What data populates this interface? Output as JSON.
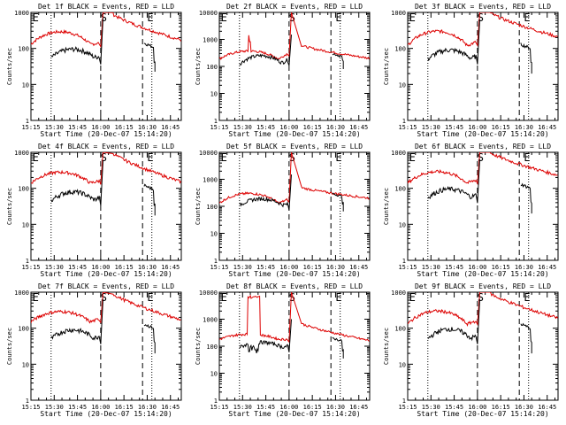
{
  "page_background": "#ffffff",
  "colors": {
    "events": "#000000",
    "lld": "#dd0000",
    "axes": "#000000"
  },
  "chart_data": {
    "type": "line",
    "layout": "3x3 grid",
    "shared": {
      "x_tick_labels": [
        "15:15",
        "15:30",
        "15:45",
        "16:00",
        "16:15",
        "16:30",
        "16:45"
      ],
      "x_tick_minutes": [
        15,
        30,
        45,
        60,
        75,
        90,
        105
      ],
      "xlim_minutes_after_15:00": [
        15,
        112
      ],
      "x_label": "Start Time (20-Dec-07 15:14:20)",
      "y_label": "Counts/sec",
      "y_scale": "log",
      "ylim": [
        1,
        1000
      ],
      "y_tick_labels": [
        "1",
        "10",
        "100",
        "1000"
      ],
      "vertical_lines": [
        {
          "minute": 28,
          "style": "dotted"
        },
        {
          "minute": 60,
          "style": "dashed"
        },
        {
          "minute": 87,
          "style": "dashed"
        },
        {
          "minute": 93,
          "style": "dotted"
        }
      ],
      "interval_marks": [
        {
          "text": "E",
          "minute": 18
        },
        {
          "text": "S",
          "minute": 62
        },
        {
          "text": "E",
          "minute": 92
        }
      ],
      "series_names": [
        "Events",
        "LLD"
      ]
    },
    "panels": [
      {
        "title": "Det 1f BLACK = Events, RED = LLD",
        "y_tick_labels": [
          "1",
          "10",
          "100",
          "1000"
        ],
        "ymax": 1000,
        "variant": "normal",
        "lld": {
          "t0": 130,
          "peak": 290,
          "pre": 140,
          "burst": 1200,
          "post": 900,
          "tail": 170
        },
        "events": {
          "t0": 55,
          "peak": 95,
          "pre": 60,
          "s2": 140,
          "s2end": 45
        }
      },
      {
        "title": "Det 2f BLACK = Events, RED = LLD",
        "y_tick_labels": [
          "1",
          "10",
          "100",
          "1000",
          "10000"
        ],
        "ymax": 10000,
        "variant": "spike",
        "lld": {
          "t0": 190,
          "peak": 370,
          "pre": 300,
          "burst": 12000,
          "post": 600,
          "tail": 200
        },
        "events": {
          "t0": 120,
          "peak": 250,
          "pre": 180,
          "s2": 300,
          "s2end": 160
        }
      },
      {
        "title": "Det 3f BLACK = Events, RED = LLD",
        "y_tick_labels": [
          "1",
          "10",
          "100",
          "1000"
        ],
        "ymax": 1000,
        "variant": "normal",
        "lld": {
          "t0": 120,
          "peak": 300,
          "pre": 150,
          "burst": 1300,
          "post": 1000,
          "tail": 210
        },
        "events": {
          "t0": 50,
          "peak": 90,
          "pre": 60,
          "s2": 130,
          "s2end": 40
        }
      },
      {
        "title": "Det 4f BLACK = Events, RED = LLD",
        "y_tick_labels": [
          "1",
          "10",
          "100",
          "1000"
        ],
        "ymax": 1000,
        "variant": "normal",
        "lld": {
          "t0": 140,
          "peak": 280,
          "pre": 160,
          "burst": 1200,
          "post": 950,
          "tail": 150
        },
        "events": {
          "t0": 45,
          "peak": 80,
          "pre": 55,
          "s2": 120,
          "s2end": 35
        }
      },
      {
        "title": "Det 5f BLACK = Events, RED = LLD",
        "y_tick_labels": [
          "1",
          "10",
          "100",
          "1000",
          "10000"
        ],
        "ymax": 10000,
        "variant": "normal",
        "lld": {
          "t0": 130,
          "peak": 300,
          "pre": 180,
          "burst": 14000,
          "post": 500,
          "tail": 200
        },
        "events": {
          "t0": 110,
          "peak": 190,
          "pre": 120,
          "s2": 300,
          "s2end": 130
        }
      },
      {
        "title": "Det 6f BLACK = Events, RED = LLD",
        "y_tick_labels": [
          "1",
          "10",
          "100",
          "1000"
        ],
        "ymax": 1000,
        "variant": "normal",
        "lld": {
          "t0": 140,
          "peak": 290,
          "pre": 170,
          "burst": 1300,
          "post": 1000,
          "tail": 230
        },
        "events": {
          "t0": 55,
          "peak": 95,
          "pre": 65,
          "s2": 130,
          "s2end": 40
        }
      },
      {
        "title": "Det 7f BLACK = Events, RED = LLD",
        "y_tick_labels": [
          "1",
          "10",
          "100",
          "1000"
        ],
        "ymax": 1000,
        "variant": "normal",
        "lld": {
          "t0": 150,
          "peak": 290,
          "pre": 180,
          "burst": 1300,
          "post": 900,
          "tail": 170
        },
        "events": {
          "t0": 50,
          "peak": 90,
          "pre": 60,
          "s2": 130,
          "s2end": 40
        }
      },
      {
        "title": "Det 8f BLACK = Events, RED = LLD",
        "y_tick_labels": [
          "1",
          "10",
          "100",
          "1000",
          "10000"
        ],
        "ymax": 10000,
        "variant": "plateau",
        "lld": {
          "t0": 180,
          "peak": 280,
          "pre": 180,
          "burst": 12000,
          "post": 700,
          "tail": 160
        },
        "events": {
          "t0": 90,
          "peak": 140,
          "pre": 100,
          "s2": 200,
          "s2end": 70
        }
      },
      {
        "title": "Det 9f BLACK = Events, RED = LLD",
        "y_tick_labels": [
          "1",
          "10",
          "100",
          "1000"
        ],
        "ymax": 1000,
        "variant": "normal",
        "lld": {
          "t0": 130,
          "peak": 300,
          "pre": 160,
          "burst": 1200,
          "post": 950,
          "tail": 190
        },
        "events": {
          "t0": 50,
          "peak": 95,
          "pre": 60,
          "s2": 130,
          "s2end": 40
        }
      }
    ]
  }
}
